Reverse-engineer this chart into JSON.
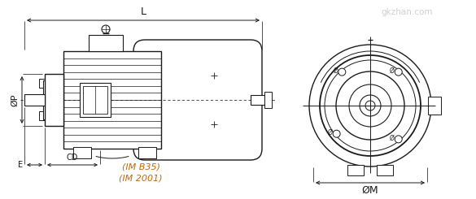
{
  "bg_color": "#ffffff",
  "line_color": "#1a1a1a",
  "dim_color": "#1a1a1a",
  "orange_color": "#cc6600",
  "watermark_text": "gkzhan.com",
  "watermark_color": "#cccccc",
  "label_L": "L",
  "label_P": "ØP",
  "label_E": "E",
  "label_CD": "CD",
  "label_M": "ØM",
  "label_IM1": "(IM B35)",
  "label_IM2": "(IM 2001)",
  "figsize": [
    5.85,
    2.45
  ],
  "dpi": 100
}
